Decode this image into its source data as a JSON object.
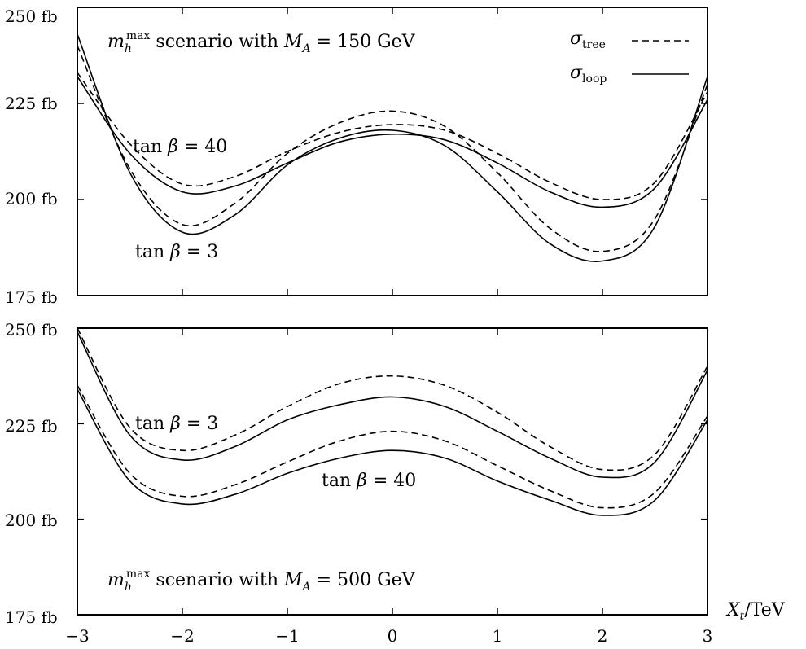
{
  "chart_data": [
    {
      "type": "line",
      "x_range": [
        -3,
        3
      ],
      "ylim": [
        175,
        250
      ],
      "y_ticks": [
        "250 fb",
        "225 fb",
        "200 fb",
        "175 fb"
      ],
      "y_tick_values": [
        250,
        225,
        200,
        175
      ],
      "x_tick_values": [
        -3,
        -2,
        -1,
        0,
        1,
        2,
        3
      ],
      "x_ticks": [],
      "grid": false,
      "legend_position": "top-right",
      "legend": [
        {
          "label_main": "σ",
          "label_sub": "tree",
          "style": "dashed"
        },
        {
          "label_main": "σ",
          "label_sub": "loop",
          "style": "solid"
        }
      ],
      "annotations": {
        "scenario": {
          "m": "m",
          "sub": "h",
          "sup": "max",
          "text": " scenario with ",
          "ma": "M",
          "ma_sub": "A",
          "eq": " = 150 GeV"
        },
        "tanb_high": {
          "fn": "tan ",
          "beta": "β",
          "eq": " = 40"
        },
        "tanb_low": {
          "fn": "tan ",
          "beta": "β",
          "eq": " = 3"
        }
      },
      "series": [
        {
          "tanb": "40",
          "style": "dashed",
          "x": [
            -3,
            -2.5,
            -2,
            -1.5,
            -1,
            -0.5,
            0,
            0.5,
            1,
            1.5,
            2,
            2.5,
            3
          ],
          "y": [
            233,
            214.5,
            204,
            206,
            212.5,
            217.5,
            219.5,
            218,
            212,
            204.5,
            200,
            204.5,
            228
          ]
        },
        {
          "tanb": "40",
          "style": "solid",
          "x": [
            -3,
            -2.5,
            -2,
            -1.5,
            -1,
            -0.5,
            0,
            0.5,
            1,
            1.5,
            2,
            2.5,
            3
          ],
          "y": [
            232,
            212,
            202,
            203.5,
            209.5,
            215,
            217,
            215.5,
            209.5,
            202,
            198,
            203,
            226
          ]
        },
        {
          "tanb": "3",
          "style": "dashed",
          "x": [
            -3,
            -2.5,
            -2,
            -1.5,
            -1,
            -0.5,
            0,
            0.5,
            1,
            1.5,
            2,
            2.5,
            3
          ],
          "y": [
            240,
            208,
            193.5,
            199,
            212,
            220,
            223,
            219,
            207,
            192.5,
            186.5,
            195,
            230
          ]
        },
        {
          "tanb": "3",
          "style": "solid",
          "x": [
            -3,
            -2.5,
            -2,
            -1.5,
            -1,
            -0.5,
            0,
            0.5,
            1,
            1.5,
            2,
            2.5,
            3
          ],
          "y": [
            243,
            207,
            191.5,
            196,
            209,
            216,
            218,
            214,
            202,
            188.5,
            184,
            193,
            232
          ]
        }
      ]
    },
    {
      "type": "line",
      "x_range": [
        -3,
        3
      ],
      "ylim": [
        175,
        250
      ],
      "y_ticks": [
        "250 fb",
        "225 fb",
        "200 fb",
        "175 fb"
      ],
      "y_tick_values": [
        250,
        225,
        200,
        175
      ],
      "x_tick_values": [
        -3,
        -2,
        -1,
        0,
        1,
        2,
        3
      ],
      "x_ticks": [
        "−3",
        "−2",
        "−1",
        "0",
        "1",
        "2",
        "3"
      ],
      "x_label": {
        "main": "X",
        "sub": "t",
        "unit": "/TeV"
      },
      "grid": false,
      "annotations": {
        "scenario": {
          "m": "m",
          "sub": "h",
          "sup": "max",
          "text": " scenario with ",
          "ma": "M",
          "ma_sub": "A",
          "eq": " = 500 GeV"
        },
        "tanb_low": {
          "fn": "tan ",
          "beta": "β",
          "eq": " = 3"
        },
        "tanb_high": {
          "fn": "tan ",
          "beta": "β",
          "eq": " = 40"
        }
      },
      "series": [
        {
          "tanb": "3",
          "style": "dashed",
          "x": [
            -3,
            -2.5,
            -2,
            -1.5,
            -1,
            -0.5,
            0,
            0.5,
            1,
            1.5,
            2,
            2.5,
            3
          ],
          "y": [
            250,
            224,
            218,
            222,
            229.5,
            235.5,
            237.5,
            235,
            228,
            219,
            213,
            217,
            240
          ]
        },
        {
          "tanb": "3",
          "style": "solid",
          "x": [
            -3,
            -2.5,
            -2,
            -1.5,
            -1,
            -0.5,
            0,
            0.5,
            1,
            1.5,
            2,
            2.5,
            3
          ],
          "y": [
            249,
            222,
            215.5,
            219,
            226,
            230,
            232,
            229.5,
            223,
            216,
            211,
            215,
            239
          ]
        },
        {
          "tanb": "40",
          "style": "dashed",
          "x": [
            -3,
            -2.5,
            -2,
            -1.5,
            -1,
            -0.5,
            0,
            0.5,
            1,
            1.5,
            2,
            2.5,
            3
          ],
          "y": [
            235,
            212,
            206,
            209,
            215,
            220.5,
            223,
            220.5,
            214,
            207.5,
            203,
            207,
            227
          ]
        },
        {
          "tanb": "40",
          "style": "solid",
          "x": [
            -3,
            -2.5,
            -2,
            -1.5,
            -1,
            -0.5,
            0,
            0.5,
            1,
            1.5,
            2,
            2.5,
            3
          ],
          "y": [
            234,
            210,
            204,
            206.5,
            212,
            216,
            218,
            216,
            210,
            205,
            201,
            205,
            226
          ]
        }
      ]
    }
  ]
}
